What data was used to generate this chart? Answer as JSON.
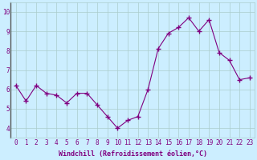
{
  "x": [
    0,
    1,
    2,
    3,
    4,
    5,
    6,
    7,
    8,
    9,
    10,
    11,
    12,
    13,
    14,
    15,
    16,
    17,
    18,
    19,
    20,
    21,
    22,
    23
  ],
  "y": [
    6.2,
    5.4,
    6.2,
    5.8,
    5.7,
    5.3,
    5.8,
    5.8,
    5.2,
    4.6,
    4.0,
    4.4,
    4.6,
    6.0,
    8.1,
    8.9,
    9.2,
    9.7,
    9.0,
    9.6,
    7.9,
    7.5,
    6.5,
    6.6
  ],
  "line_color": "#800080",
  "marker": "+",
  "marker_size": 4,
  "marker_linewidth": 1.0,
  "bg_color": "#cceeff",
  "grid_color": "#aacccc",
  "xlabel": "Windchill (Refroidissement éolien,°C)",
  "xlabel_color": "#800080",
  "tick_color": "#800080",
  "ylim": [
    3.5,
    10.5
  ],
  "xlim": [
    -0.5,
    23.5
  ],
  "yticks": [
    4,
    5,
    6,
    7,
    8,
    9,
    10
  ],
  "xticks": [
    0,
    1,
    2,
    3,
    4,
    5,
    6,
    7,
    8,
    9,
    10,
    11,
    12,
    13,
    14,
    15,
    16,
    17,
    18,
    19,
    20,
    21,
    22,
    23
  ],
  "tick_fontsize": 5.5,
  "xlabel_fontsize": 6.0
}
